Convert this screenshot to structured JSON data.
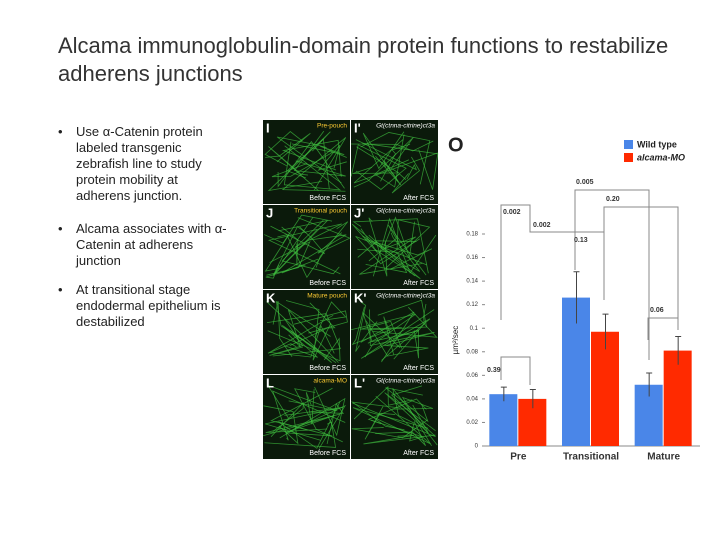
{
  "slide": {
    "title": "Alcama immunoglobulin-domain protein functions to restabilize adherens junctions",
    "bullets": [
      "Use α-Catenin protein labeled transgenic zebrafish line to study protein mobility at adherens junction.",
      "Alcama associates with α-Catenin at adherens junction",
      "At transitional stage endodermal epithelium is destabilized"
    ]
  },
  "micrograph": {
    "panels": [
      {
        "letter": "I",
        "label": "Pre-pouch",
        "caption": "Before FCS"
      },
      {
        "letter": "I'",
        "label": "Gt(ctnna-citrine)ct3a",
        "caption": "After FCS"
      },
      {
        "letter": "J",
        "label": "Transitional pouch",
        "caption": "Before FCS"
      },
      {
        "letter": "J'",
        "label": "Gt(ctnna-citrine)ct3a",
        "caption": "After FCS"
      },
      {
        "letter": "K",
        "label": "Mature pouch",
        "caption": "Before FCS"
      },
      {
        "letter": "K'",
        "label": "Gt(ctnna-citrine)ct3a",
        "caption": "After FCS"
      },
      {
        "letter": "L",
        "label": "alcama-MO",
        "caption": "Before FCS"
      },
      {
        "letter": "L'",
        "label": "Gt(ctnna-citrine)ct3a",
        "caption": "After FCS"
      }
    ]
  },
  "chart_data": {
    "type": "bar",
    "panel_letter": "O",
    "y_label": "µm²/sec",
    "categories": [
      "Pre",
      "Transitional",
      "Mature"
    ],
    "series": [
      {
        "name": "Wild type",
        "color": "#4a86e8",
        "values": [
          0.044,
          0.126,
          0.052
        ],
        "errors": [
          0.006,
          0.022,
          0.01
        ]
      },
      {
        "name": "alcama-MO",
        "color": "#ff2a00",
        "values": [
          0.04,
          0.097,
          0.081
        ],
        "errors": [
          0.008,
          0.015,
          0.012
        ]
      }
    ],
    "ylim": [
      0,
      0.18
    ],
    "yticks": [
      0,
      0.02,
      0.04,
      0.06,
      0.08,
      0.1,
      0.12,
      0.14,
      0.16,
      0.18
    ],
    "annotations": [
      "0.39",
      "0.13",
      "0.06",
      "0.002",
      "0.002",
      "0.005",
      "0.20"
    ]
  }
}
